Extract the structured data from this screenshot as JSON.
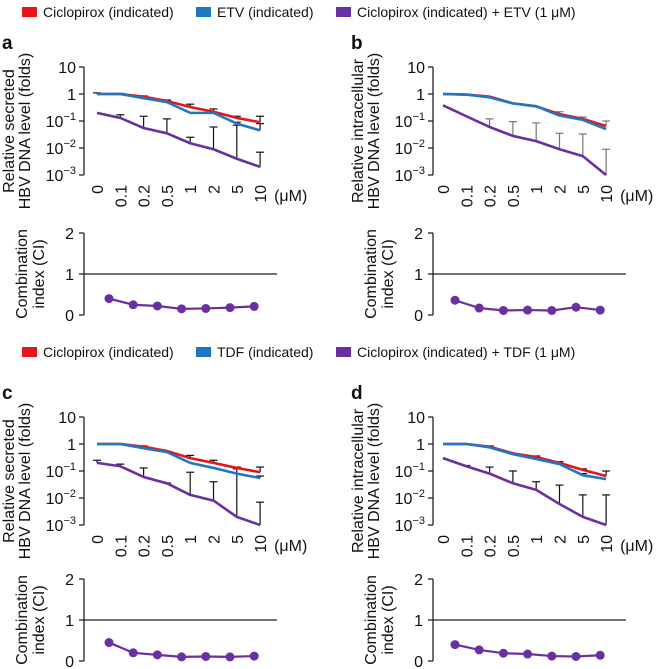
{
  "legends": [
    {
      "items": [
        {
          "label": "Ciclopirox (indicated)",
          "color": "#e8141b"
        },
        {
          "label": "ETV (indicated)",
          "color": "#1f77c4"
        },
        {
          "label": "Ciclopirox (indicated) + ETV (1 μM)",
          "color": "#6a2fa0"
        }
      ]
    },
    {
      "items": [
        {
          "label": "Ciclopirox (indicated)",
          "color": "#e8141b"
        },
        {
          "label": "TDF (indicated)",
          "color": "#1f77c4"
        },
        {
          "label": "Ciclopirox (indicated) + TDF (1 μM)",
          "color": "#6a2fa0"
        }
      ]
    }
  ],
  "chart_data": [
    {
      "panel": "a",
      "type": "line",
      "ylabel": [
        "Relative secreted",
        "HBV DNA level (folds)"
      ],
      "yscale": "log",
      "ylim": [
        0.001,
        10
      ],
      "yticks": [
        {
          "base": "10",
          "exp": ""
        },
        {
          "base": "1",
          "exp": ""
        },
        {
          "base": "10",
          "exp": "−1"
        },
        {
          "base": "10",
          "exp": "−2"
        },
        {
          "base": "10",
          "exp": "−3"
        }
      ],
      "categories": [
        "0",
        "0.1",
        "0.2",
        "0.5",
        "1",
        "2",
        "5",
        "10"
      ],
      "xunit": "(μM)",
      "errorbar_color": "#111111",
      "series": [
        {
          "name": "Ciclopirox (indicated)",
          "color": "#e8141b",
          "values": [
            1.0,
            1.0,
            0.8,
            0.55,
            0.33,
            0.22,
            0.13,
            0.09
          ],
          "err_upper": [
            1.1,
            1.05,
            0.85,
            0.6,
            0.42,
            0.28,
            0.15,
            0.15
          ]
        },
        {
          "name": "ETV (indicated)",
          "color": "#1f77c4",
          "values": [
            1.0,
            1.0,
            0.7,
            0.5,
            0.2,
            0.2,
            0.08,
            0.045
          ],
          "err_upper": [
            null,
            null,
            null,
            null,
            null,
            null,
            0.09,
            0.08
          ]
        },
        {
          "name": "Ciclopirox (indicated) + ETV (1 μM)",
          "color": "#6a2fa0",
          "values": [
            0.2,
            0.13,
            0.055,
            0.035,
            0.015,
            0.009,
            0.004,
            0.002
          ],
          "err_upper": [
            null,
            0.17,
            0.15,
            0.12,
            0.025,
            0.06,
            0.07,
            0.007
          ]
        }
      ],
      "ci": {
        "ylabel": [
          "Combination",
          "index (CI)"
        ],
        "ylim": [
          0,
          2
        ],
        "yticks": [
          "2",
          "1",
          "0"
        ],
        "reference": 1,
        "color": "#6a2fa0",
        "values": [
          0.4,
          0.25,
          0.22,
          0.15,
          0.16,
          0.18,
          0.21
        ]
      }
    },
    {
      "panel": "b",
      "type": "line",
      "ylabel": [
        "Relative intracellular",
        "HBV DNA level (folds)"
      ],
      "yscale": "log",
      "ylim": [
        0.001,
        10
      ],
      "yticks": [
        {
          "base": "10",
          "exp": ""
        },
        {
          "base": "1",
          "exp": ""
        },
        {
          "base": "10",
          "exp": "−1"
        },
        {
          "base": "10",
          "exp": "−2"
        },
        {
          "base": "10",
          "exp": "−3"
        }
      ],
      "categories": [
        "0",
        "0.1",
        "0.2",
        "0.5",
        "1",
        "2",
        "5",
        "10"
      ],
      "xunit": "(μM)",
      "errorbar_color": "#777777",
      "series": [
        {
          "name": "Ciclopirox (indicated)",
          "color": "#e8141b",
          "values": [
            1.0,
            0.95,
            0.8,
            0.45,
            0.35,
            0.18,
            0.12,
            0.065
          ],
          "err_upper": [
            null,
            null,
            null,
            null,
            null,
            0.22,
            0.14,
            0.1
          ]
        },
        {
          "name": "ETV (indicated)",
          "color": "#1f77c4",
          "values": [
            1.0,
            0.95,
            0.75,
            0.45,
            0.35,
            0.16,
            0.11,
            0.05
          ],
          "err_upper": [
            null,
            null,
            null,
            null,
            null,
            null,
            null,
            null
          ]
        },
        {
          "name": "Ciclopirox (indicated) + ETV (1 μM)",
          "color": "#6a2fa0",
          "values": [
            0.38,
            0.15,
            0.06,
            0.028,
            0.018,
            0.009,
            0.005,
            0.001
          ],
          "err_upper": [
            null,
            null,
            0.12,
            0.095,
            0.085,
            0.035,
            0.033,
            0.009
          ]
        }
      ],
      "ci": {
        "ylabel": [
          "Combination",
          "index (CI)"
        ],
        "ylim": [
          0,
          2
        ],
        "yticks": [
          "2",
          "1",
          "0"
        ],
        "reference": 1,
        "color": "#6a2fa0",
        "values": [
          0.36,
          0.17,
          0.11,
          0.12,
          0.11,
          0.19,
          0.12
        ]
      }
    },
    {
      "panel": "c",
      "type": "line",
      "ylabel": [
        "Relative secreted",
        "HBV DNA level (folds)"
      ],
      "yscale": "log",
      "ylim": [
        0.001,
        10
      ],
      "yticks": [
        {
          "base": "10",
          "exp": ""
        },
        {
          "base": "1",
          "exp": ""
        },
        {
          "base": "10",
          "exp": "−1"
        },
        {
          "base": "10",
          "exp": "−2"
        },
        {
          "base": "10",
          "exp": "−3"
        }
      ],
      "categories": [
        "0",
        "0.1",
        "0.2",
        "0.5",
        "1",
        "2",
        "5",
        "10"
      ],
      "xunit": "(μM)",
      "errorbar_color": "#111111",
      "series": [
        {
          "name": "Ciclopirox (indicated)",
          "color": "#e8141b",
          "values": [
            1.0,
            1.0,
            0.8,
            0.55,
            0.3,
            0.2,
            0.13,
            0.09
          ],
          "err_upper": [
            null,
            null,
            0.85,
            null,
            0.38,
            0.25,
            0.14,
            0.14
          ]
        },
        {
          "name": "TDF (indicated)",
          "color": "#1f77c4",
          "values": [
            1.0,
            1.0,
            0.7,
            0.5,
            0.2,
            0.13,
            0.08,
            0.055
          ],
          "err_upper": [
            null,
            null,
            null,
            null,
            null,
            null,
            null,
            0.065
          ]
        },
        {
          "name": "Ciclopirox (indicated) + TDF (1 μM)",
          "color": "#6a2fa0",
          "values": [
            0.2,
            0.15,
            0.06,
            0.035,
            0.013,
            0.008,
            0.002,
            0.001
          ],
          "err_upper": [
            0.25,
            0.18,
            0.13,
            0.036,
            0.09,
            0.04,
            0.12,
            0.007
          ]
        }
      ],
      "ci": {
        "ylabel": [
          "Combination",
          "index (CI)"
        ],
        "ylim": [
          0,
          2
        ],
        "yticks": [
          "2",
          "1",
          "0"
        ],
        "reference": 1,
        "color": "#6a2fa0",
        "values": [
          0.45,
          0.2,
          0.15,
          0.1,
          0.11,
          0.1,
          0.12
        ]
      }
    },
    {
      "panel": "d",
      "type": "line",
      "ylabel": [
        "Relative intracellular",
        "HBV DNA level (folds)"
      ],
      "yscale": "log",
      "ylim": [
        0.001,
        10
      ],
      "yticks": [
        {
          "base": "10",
          "exp": ""
        },
        {
          "base": "1",
          "exp": ""
        },
        {
          "base": "10",
          "exp": "−1"
        },
        {
          "base": "10",
          "exp": "−2"
        },
        {
          "base": "10",
          "exp": "−3"
        }
      ],
      "categories": [
        "0",
        "0.1",
        "0.2",
        "0.5",
        "1",
        "2",
        "5",
        "10"
      ],
      "xunit": "(μM)",
      "errorbar_color": "#111111",
      "series": [
        {
          "name": "Ciclopirox (indicated)",
          "color": "#e8141b",
          "values": [
            1.0,
            1.0,
            0.8,
            0.45,
            0.33,
            0.2,
            0.11,
            0.065
          ],
          "err_upper": [
            null,
            null,
            0.85,
            null,
            0.36,
            0.22,
            0.12,
            0.1
          ]
        },
        {
          "name": "TDF (indicated)",
          "color": "#1f77c4",
          "values": [
            1.0,
            1.0,
            0.75,
            0.42,
            0.28,
            0.18,
            0.07,
            0.05
          ],
          "err_upper": [
            null,
            null,
            null,
            null,
            null,
            null,
            0.08,
            null
          ]
        },
        {
          "name": "Ciclopirox (indicated) + TDF (1 μM)",
          "color": "#6a2fa0",
          "values": [
            0.3,
            0.15,
            0.08,
            0.035,
            0.02,
            0.006,
            0.002,
            0.001
          ],
          "err_upper": [
            null,
            0.16,
            0.14,
            0.1,
            0.04,
            0.03,
            0.013,
            0.013
          ]
        }
      ],
      "ci": {
        "ylabel": [
          "Combination",
          "index (CI)"
        ],
        "ylim": [
          0,
          2
        ],
        "yticks": [
          "2",
          "1",
          "0"
        ],
        "reference": 1,
        "color": "#6a2fa0",
        "values": [
          0.4,
          0.27,
          0.19,
          0.17,
          0.12,
          0.11,
          0.14
        ]
      }
    }
  ]
}
